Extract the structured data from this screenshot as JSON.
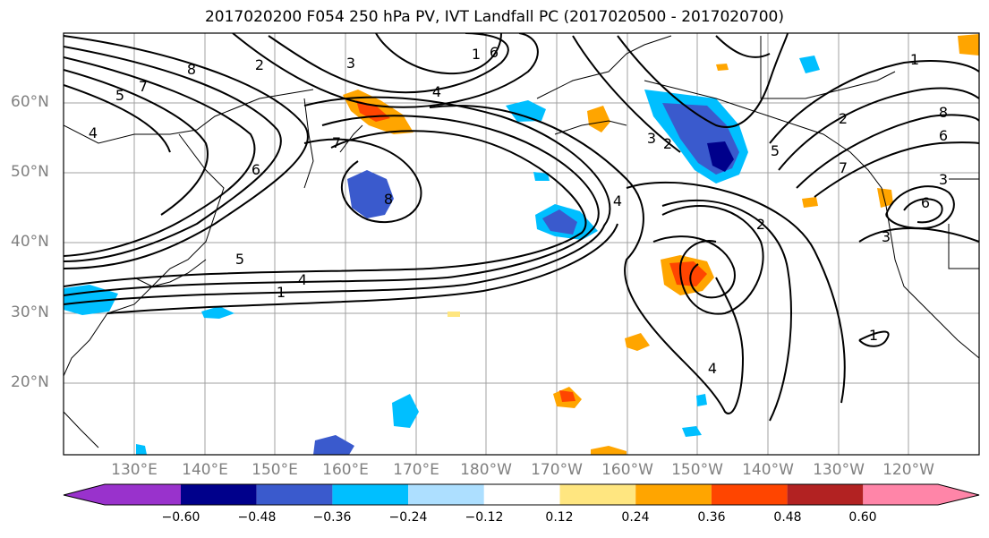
{
  "title": "2017020200 F054 250 hPa PV, IVT Landfall PC (2017020500 - 2017020700)",
  "lat_labels": [
    "60°N",
    "50°N",
    "40°N",
    "30°N",
    "20°N"
  ],
  "lon_labels": [
    "130°E",
    "140°E",
    "150°E",
    "160°E",
    "170°E",
    "180°W",
    "170°W",
    "160°W",
    "150°W",
    "140°W",
    "130°W",
    "120°W"
  ],
  "colorbar": {
    "ticks": [
      "−0.60",
      "−0.48",
      "−0.36",
      "−0.24",
      "−0.12",
      "0.12",
      "0.24",
      "0.36",
      "0.48",
      "0.60"
    ],
    "colors": [
      "#9932CC",
      "#00008B",
      "#3A5ACD",
      "#00BFFF",
      "#ADDFFF",
      "#FFFFFF",
      "#FFE680",
      "#FFA500",
      "#FF4500",
      "#B22222",
      "#FF85A8"
    ]
  },
  "contour_labels": [
    "8",
    "2",
    "3",
    "1",
    "6",
    "5",
    "7",
    "4",
    "7",
    "6",
    "8",
    "4",
    "2",
    "4",
    "3",
    "5",
    "4",
    "2",
    "1",
    "4",
    "1",
    "2",
    "1",
    "8",
    "6",
    "3",
    "7",
    "5",
    "6",
    "3"
  ]
}
